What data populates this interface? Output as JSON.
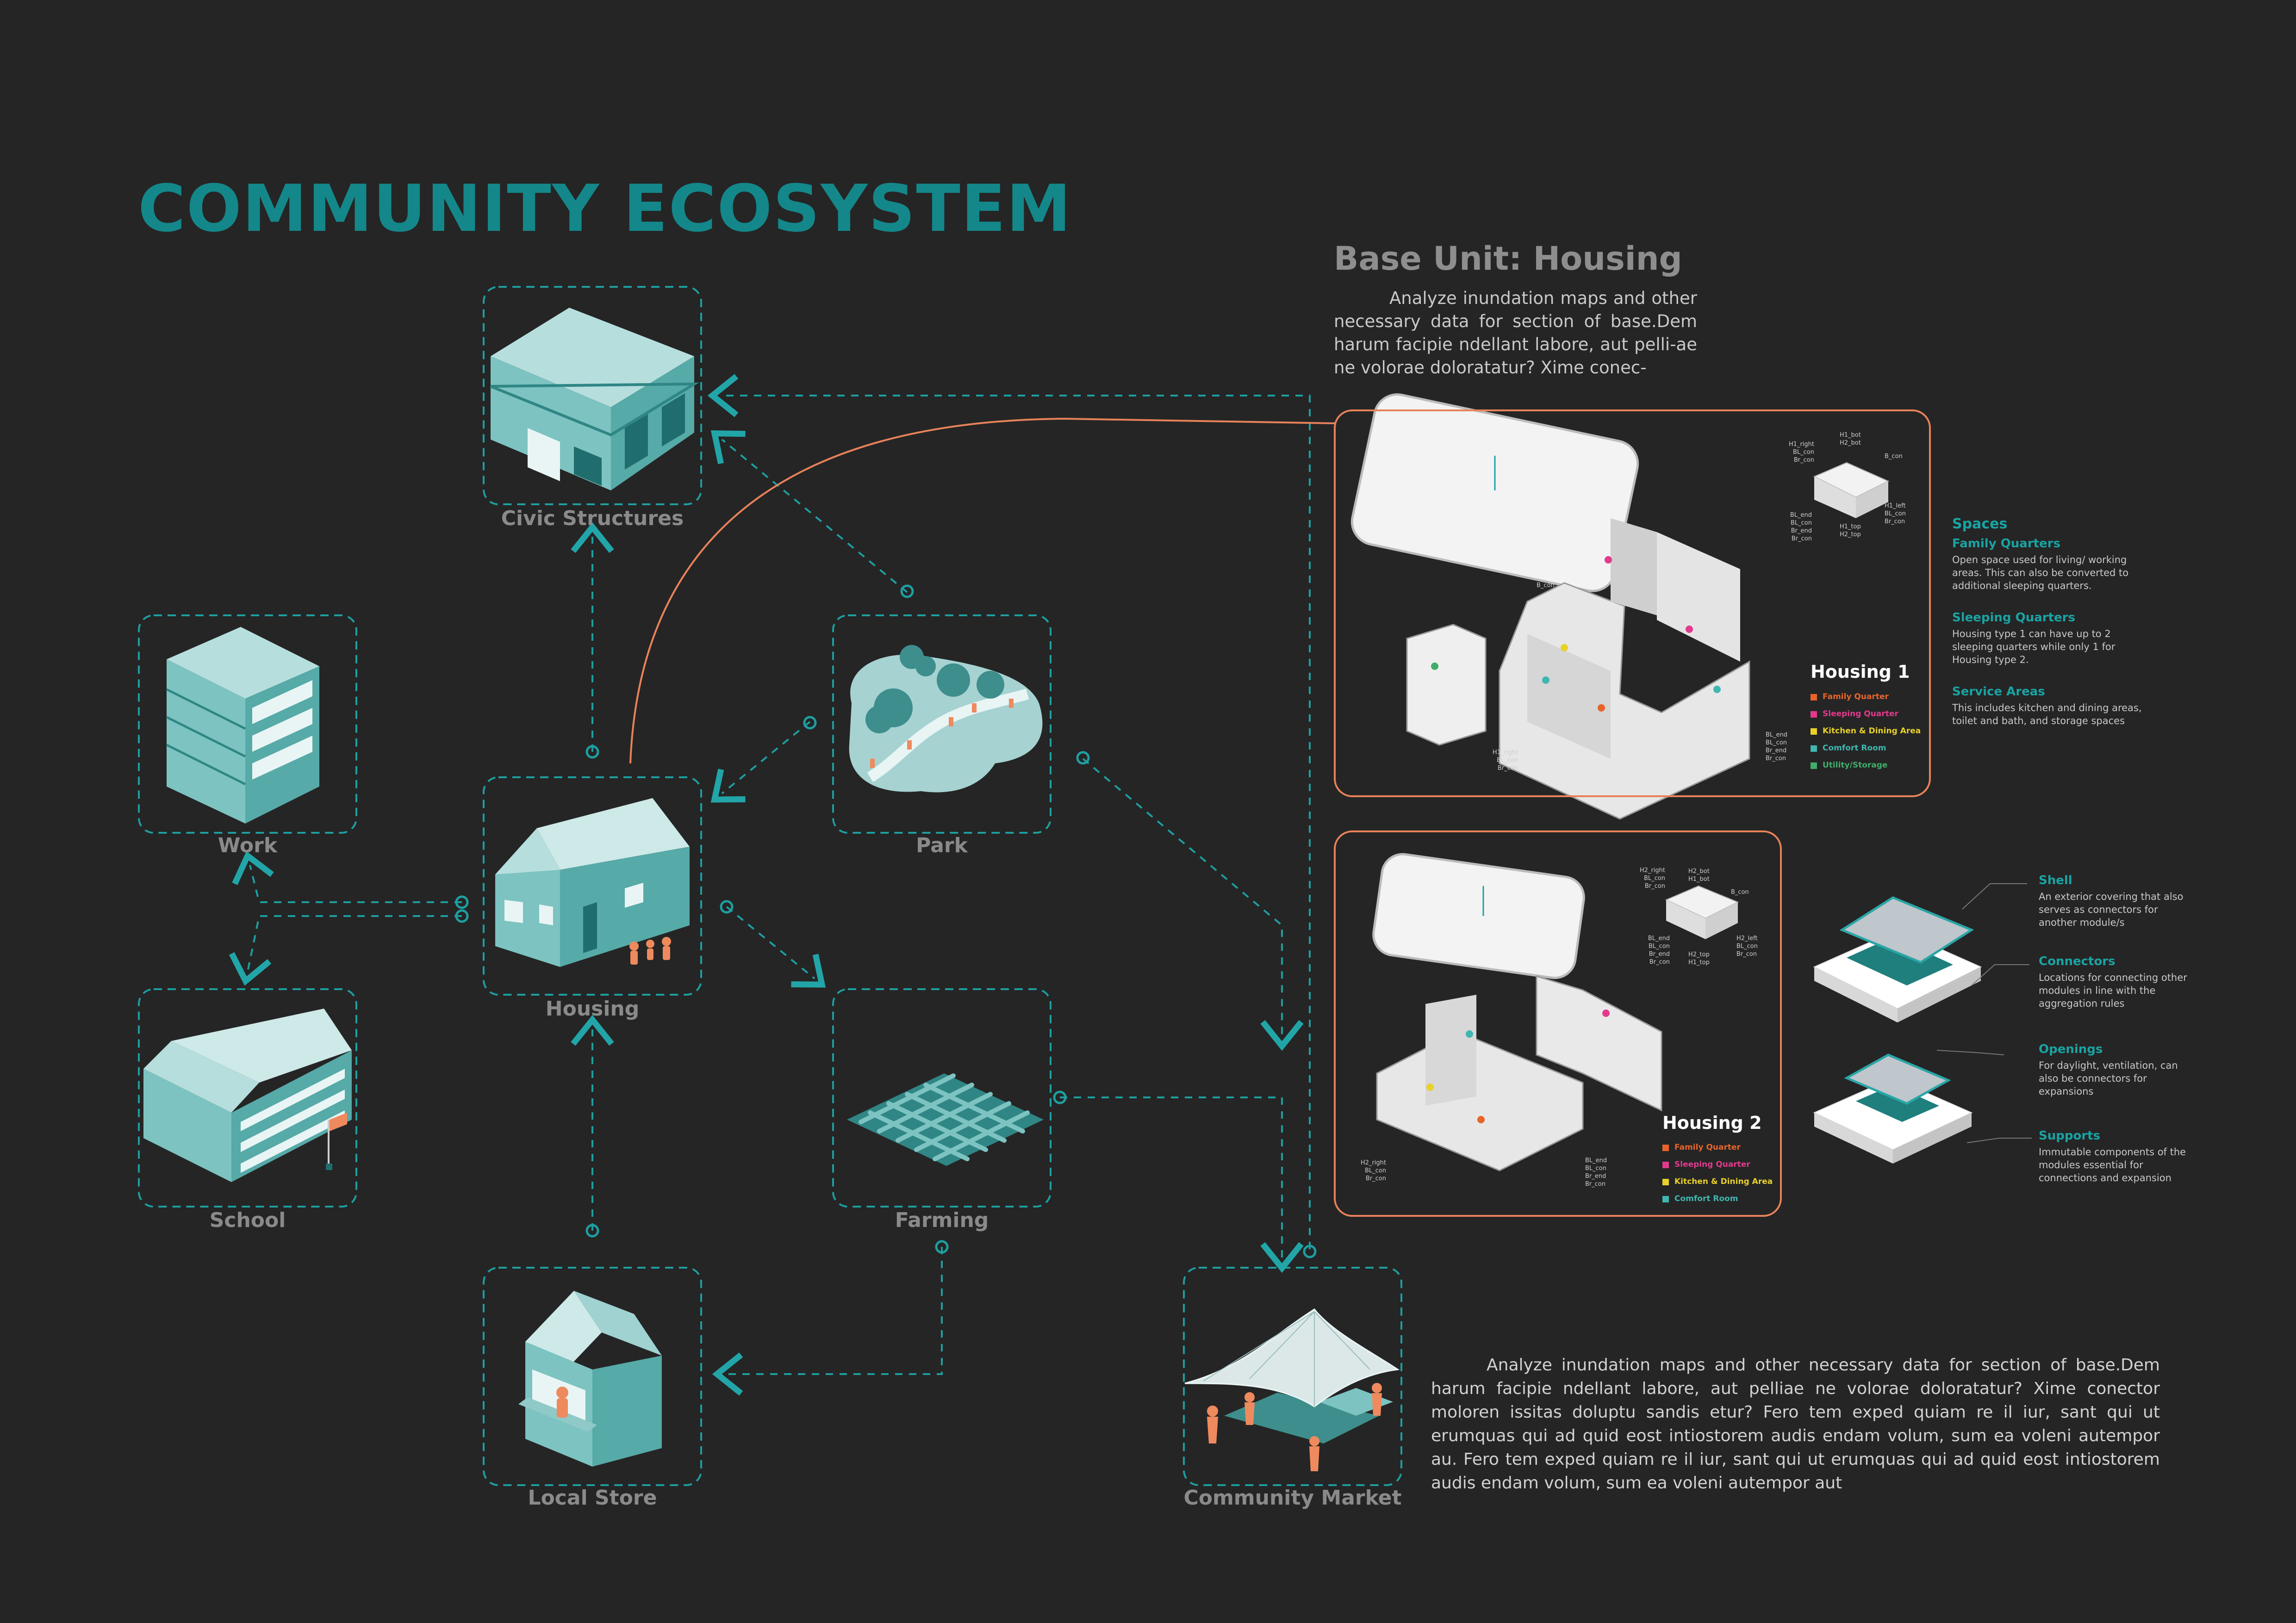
{
  "title": "COMMUNITY ECOSYSTEM",
  "nodes": {
    "civic": "Civic Structures",
    "work": "Work",
    "park": "Park",
    "housing": "Housing",
    "school": "School",
    "farming": "Farming",
    "local_store": "Local Store",
    "community_market": "Community Market"
  },
  "base_unit": {
    "title": "Base Unit: Housing",
    "paragraph": "Analyze inundation maps and other necessary data for section of base.Dem harum facipie ndellant labore, aut pelli-ae ne volorae doloratatur? Xime conec-"
  },
  "housing1": {
    "title": "Housing 1",
    "legend": [
      {
        "label": "Family Quarter",
        "color": "#e8642a"
      },
      {
        "label": "Sleeping Quarter",
        "color": "#e23a8c"
      },
      {
        "label": "Kitchen & Dining Area",
        "color": "#e8d12a"
      },
      {
        "label": "Comfort Room",
        "color": "#3fb6b0"
      },
      {
        "label": "Utility/Storage",
        "color": "#3fae6a"
      }
    ],
    "annotations": {
      "top_left": [
        "H1_right",
        "BL_con",
        "Br_con"
      ],
      "top_mid": [
        "H1_bot",
        "H2_bot"
      ],
      "top_right": [
        "B_con"
      ],
      "mid_left": [
        "BL_end",
        "BL_con",
        "Br_end",
        "Br_con"
      ],
      "mid_mid": [
        "H1_top",
        "H2_top"
      ],
      "mid_right": [
        "H1_left",
        "BL_con",
        "Br_con"
      ],
      "b_con": "B_con",
      "bottom_right": [
        "BL_end",
        "BL_con",
        "Br_end",
        "Br_con"
      ],
      "bottom_left": [
        "H1_right",
        "BL_con",
        "Br_con"
      ]
    }
  },
  "housing2": {
    "title": "Housing 2",
    "legend": [
      {
        "label": "Family Quarter",
        "color": "#e8642a"
      },
      {
        "label": "Sleeping Quarter",
        "color": "#e23a8c"
      },
      {
        "label": "Kitchen & Dining Area",
        "color": "#e8d12a"
      },
      {
        "label": "Comfort Room",
        "color": "#3fb6b0"
      }
    ],
    "annotations": {
      "top_left": [
        "H2_right",
        "BL_con",
        "Br_con"
      ],
      "top_mid": [
        "H2_bot",
        "H1_bot"
      ],
      "top_right": [
        "B_con"
      ],
      "mid_left": [
        "BL_end",
        "BL_con",
        "Br_end",
        "Br_con"
      ],
      "mid_mid": [
        "H2_top",
        "H1_top"
      ],
      "mid_right": [
        "H2_left",
        "BL_con",
        "Br_con"
      ],
      "bottom_left": [
        "H2_right",
        "BL_con",
        "Br_con"
      ],
      "bottom_right": [
        "BL_end",
        "BL_con",
        "Br_end",
        "Br_con"
      ]
    }
  },
  "spaces": {
    "heading": "Spaces",
    "items": [
      {
        "title": "Family Quarters",
        "text": "Open space used for living/ working areas. This can also be converted to additional sleeping quarters."
      },
      {
        "title": "Sleeping Quarters",
        "text": "Housing type 1 can have up to 2 sleeping quarters while only 1 for Housing type 2."
      },
      {
        "title": "Service Areas",
        "text": "This includes kitchen and dining areas, toilet and bath, and storage spaces"
      }
    ]
  },
  "components": [
    {
      "title": "Shell",
      "text": "An exterior covering that also serves as connectors for another module/s"
    },
    {
      "title": "Connectors",
      "text": "Locations for connecting other modules in line with the aggregation rules"
    },
    {
      "title": "Openings",
      "text": "For daylight, ventilation, can also be connectors for expansions"
    },
    {
      "title": "Supports",
      "text": "Immutable components of the modules essential for connections and expansion"
    }
  ],
  "bottom_paragraph": "Analyze inundation maps and other necessary data for section of base.Dem harum facipie ndellant labore, aut pelliae ne volorae doloratatur? Xime conector moloren issitas doluptu sandis etur? Fero tem exped quiam re il iur, sant qui ut erumquas qui ad quid eost intiostorem audis endam volum, sum ea voleni autempor au. Fero tem exped quiam re il iur, sant qui ut erumquas qui ad quid eost intiostorem audis endam volum, sum ea voleni autempor aut",
  "colors": {
    "accent": "#14878a",
    "teal_fill": "#8fc9c8",
    "panel_border": "#e8825a",
    "figure": "#ee8a5e"
  }
}
